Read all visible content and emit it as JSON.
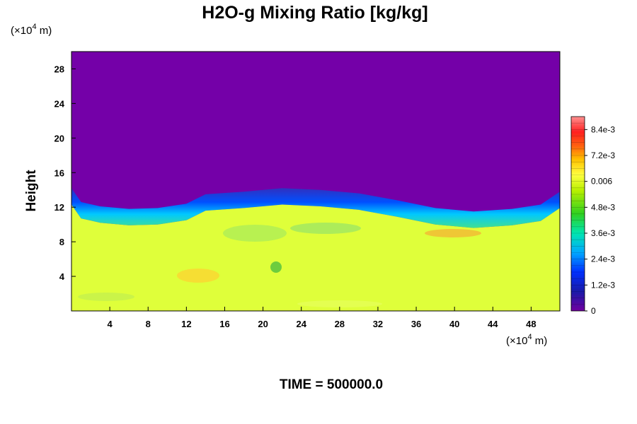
{
  "chart_data": {
    "type": "heatmap",
    "title": "H2O-g Mixing Ratio [kg/kg]",
    "ylabel": "Height",
    "x_unit": "m",
    "y_unit": "m",
    "unit_exponent": "4",
    "xlim": [
      0,
      51
    ],
    "ylim": [
      0,
      30
    ],
    "x_ticks": [
      "4",
      "8",
      "12",
      "16",
      "20",
      "24",
      "28",
      "32",
      "36",
      "40",
      "44",
      "48"
    ],
    "y_ticks": [
      "4",
      "8",
      "12",
      "16",
      "20",
      "24",
      "28"
    ],
    "colorbar": {
      "range": [
        0,
        0.009
      ],
      "tick_labels": [
        "0",
        "1.2e-3",
        "2.4e-3",
        "3.6e-3",
        "4.8e-3",
        "0.006",
        "7.2e-3",
        "8.4e-3"
      ],
      "tick_values": [
        0,
        0.0012,
        0.0024,
        0.0036,
        0.0048,
        0.006,
        0.0072,
        0.0084
      ]
    },
    "field_summary": {
      "upper_layer_value": 0,
      "lower_layer_value": 0.0062,
      "boundary_height": [
        [
          0,
          13.2
        ],
        [
          1,
          11.6
        ],
        [
          3,
          11.1
        ],
        [
          6,
          10.8
        ],
        [
          9,
          10.9
        ],
        [
          12,
          11.4
        ],
        [
          14,
          12.5
        ],
        [
          18,
          12.8
        ],
        [
          22,
          13.2
        ],
        [
          26,
          13.0
        ],
        [
          30,
          12.6
        ],
        [
          34,
          11.8
        ],
        [
          38,
          10.9
        ],
        [
          42,
          10.5
        ],
        [
          46,
          10.8
        ],
        [
          49,
          11.3
        ],
        [
          51,
          12.8
        ]
      ]
    },
    "annotation": "TIME = 500000.0"
  },
  "colors": {
    "upper": "#7400a8",
    "lower": "#dfff3a"
  }
}
